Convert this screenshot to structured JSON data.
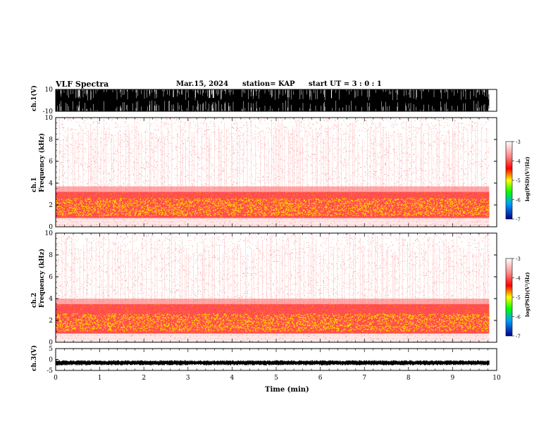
{
  "header": {
    "title": "VLF Spectra",
    "date": "Mar.15, 2024",
    "station": "station= KAP",
    "start": "start  UT =  3 : 0  : 1"
  },
  "colorbar": {
    "label": "log(PSD)(V²/Hz)",
    "ticks": [
      "-3",
      "-4",
      "-5",
      "-6",
      "-7"
    ],
    "colors": [
      "#ffffff",
      "#ff0000",
      "#ffff00",
      "#00ff00",
      "#0000ff",
      "#00008b"
    ]
  },
  "chart_data": [
    {
      "type": "line",
      "title": "VLF Spectra",
      "panel": "ch1-waveform",
      "ylabel": "ch.1(V)",
      "ylim": [
        -10,
        10
      ],
      "yticks": [
        "10",
        "-10"
      ],
      "xlim": [
        0,
        10
      ],
      "description_values": {
        "typical_range": [
          -10,
          10
        ],
        "saturation": "frequent clipping at ±10 V"
      }
    },
    {
      "type": "heatmap",
      "panel": "ch1-spectrogram",
      "ylabel": "ch.1\nFrequency (kHz)",
      "ylim": [
        0,
        10
      ],
      "yticks": [
        "0",
        "2",
        "4",
        "6",
        "8",
        "10"
      ],
      "xlim": [
        0,
        10
      ],
      "zlim": [
        -7,
        -3
      ],
      "band_hz": {
        "strong_low": 0.8,
        "strong_high": 3.2,
        "peak_low": 1.0,
        "peak_high": 2.0
      }
    },
    {
      "type": "heatmap",
      "panel": "ch2-spectrogram",
      "ylabel": "ch.2\nFrequency (kHz)",
      "ylim": [
        0,
        10
      ],
      "yticks": [
        "0",
        "2",
        "4",
        "6",
        "8",
        "10"
      ],
      "xlim": [
        0,
        10
      ],
      "zlim": [
        -7,
        -3
      ],
      "band_hz": {
        "strong_low": 0.8,
        "strong_high": 3.5,
        "peak_low": 1.0,
        "peak_high": 2.0
      }
    },
    {
      "type": "line",
      "panel": "ch3-waveform",
      "ylabel": "ch.3(V)",
      "ylim": [
        -5,
        5
      ],
      "yticks": [
        "5",
        "0",
        "-5"
      ],
      "xlim": [
        0,
        10
      ],
      "xlabel": "Time (min)",
      "xticks": [
        "0",
        "1",
        "2",
        "3",
        "4",
        "5",
        "6",
        "7",
        "8",
        "9",
        "10"
      ],
      "level": -1.5
    }
  ]
}
